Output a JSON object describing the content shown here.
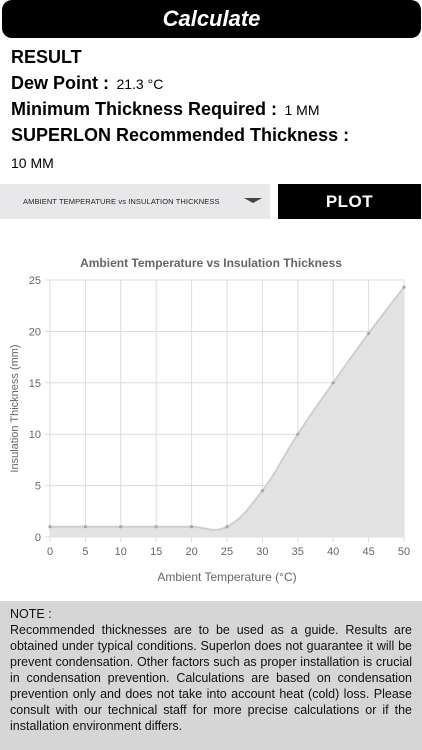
{
  "header": {
    "calculate_label": "Calculate"
  },
  "result": {
    "heading": "RESULT",
    "dew_point_label": "Dew Point :",
    "dew_point_value": "21.3 °C",
    "min_thickness_label": "Minimum Thickness Required :",
    "min_thickness_value": "1 MM",
    "recommended_label": "SUPERLON Recommended Thickness :",
    "recommended_value": "10 MM"
  },
  "controls": {
    "dropdown_selected": "AMBIENT TEMPERATURE vs INSULATION THICKNESS",
    "plot_label": "PLOT"
  },
  "chart_data": {
    "type": "area",
    "title": "Ambient Temperature vs Insulation Thickness",
    "xlabel": "Ambient Temperature (°C)",
    "ylabel": "Insulation Thickness (mm)",
    "x": [
      0,
      5,
      10,
      15,
      20,
      25,
      30,
      35,
      40,
      45,
      50
    ],
    "values": [
      1,
      1,
      1,
      1,
      1,
      1,
      4.5,
      10,
      15,
      19.8,
      24.3
    ],
    "xlim": [
      0,
      50
    ],
    "ylim": [
      0,
      25
    ],
    "x_ticks": [
      "0",
      "5",
      "10",
      "15",
      "20",
      "25",
      "30",
      "35",
      "40",
      "45",
      "50"
    ],
    "y_ticks": [
      "0",
      "5",
      "10",
      "15",
      "20",
      "25"
    ],
    "grid": true,
    "colors": {
      "fill": "#e3e3e3",
      "line": "#cfcfcf",
      "point": "#a8a8a8",
      "grid": "#dcdcdc"
    }
  },
  "note": {
    "title": "NOTE :",
    "body": "Recommended thicknesses are to be used as a guide. Results are obtained under typical conditions. Superlon does not guarantee it will be prevent condensation. Other factors such as proper installation is crucial in condensation prevention. Calculations are based on condensation prevention only and does not take into account heat (cold) loss. Please consult with our technical staff for more precise calculations or if the installation environment differs."
  }
}
